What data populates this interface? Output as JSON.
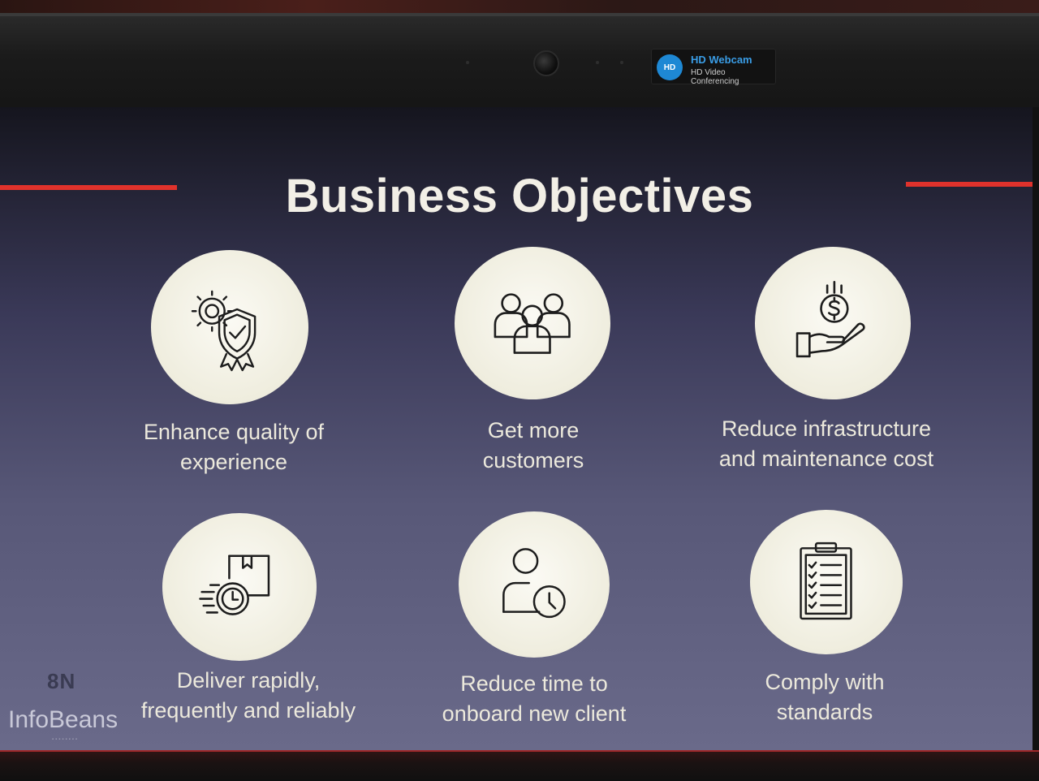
{
  "webcam": {
    "badge_icon_text": "HD",
    "title": "HD Webcam",
    "subtitle": "HD Video Conferencing"
  },
  "slide": {
    "title": "Business Objectives",
    "accent_color": "#e0322c",
    "objectives": [
      {
        "icon": "gear-shield-icon",
        "label_line1": "Enhance quality of",
        "label_line2": "experience"
      },
      {
        "icon": "group-people-icon",
        "label_line1": "Get more",
        "label_line2": "customers"
      },
      {
        "icon": "hand-coin-icon",
        "label_line1": "Reduce infrastructure",
        "label_line2": "and maintenance cost"
      },
      {
        "icon": "fast-delivery-icon",
        "label_line1": "Deliver rapidly,",
        "label_line2": "frequently and reliably"
      },
      {
        "icon": "user-clock-icon",
        "label_line1": "Reduce time to",
        "label_line2": "onboard new client"
      },
      {
        "icon": "clipboard-checklist-icon",
        "label_line1": "Comply with",
        "label_line2": "standards"
      }
    ],
    "corner_mark": "8N",
    "logo": "InfoBeans"
  }
}
